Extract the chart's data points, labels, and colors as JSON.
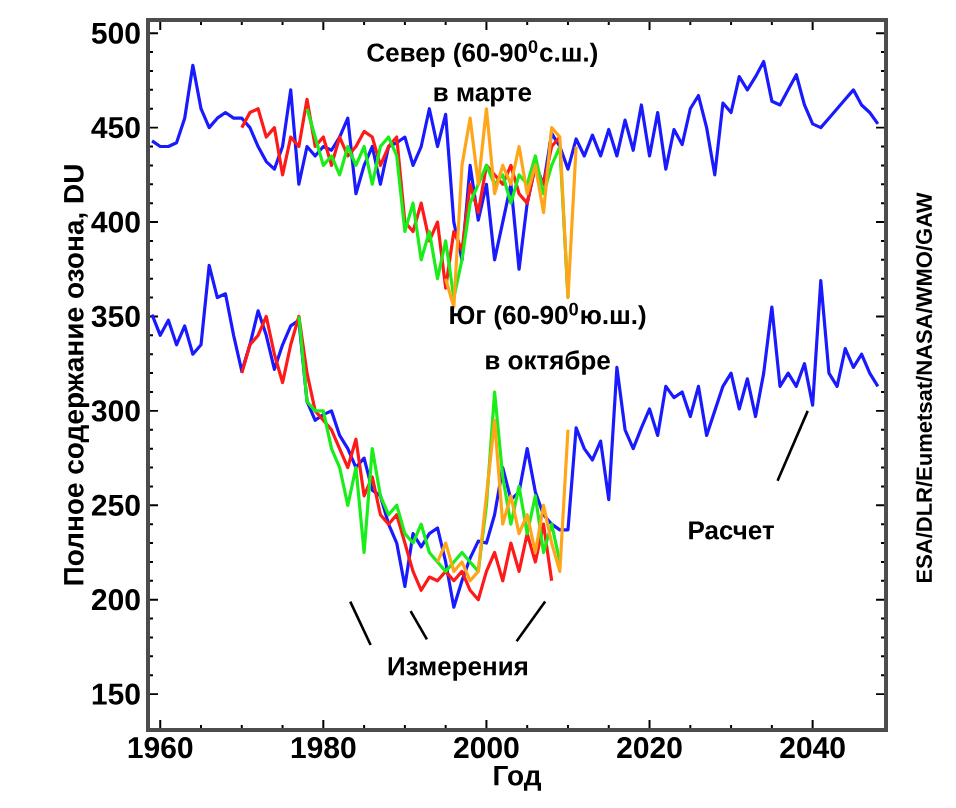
{
  "chart_data": {
    "type": "line",
    "xlabel": "Год",
    "ylabel": "Полное содержание озона, DU",
    "xlim": [
      1958.5,
      2049
    ],
    "ylim": [
      131,
      507
    ],
    "xticks": [
      1960,
      1980,
      2000,
      2020,
      2040
    ],
    "yticks": [
      150,
      200,
      250,
      300,
      350,
      400,
      450,
      500
    ],
    "grid": false,
    "marker": "none",
    "line_style": "solid",
    "annotations": [
      "Север (60-90$^{0}$с.ш.)",
      "в марте",
      "Юг (60-90$^{0}$ю.ш.)",
      "в октябре",
      "Измерения",
      "Расчет",
      "ESA/DLR/Eumetsat/NASA/WMO/GAW"
    ],
    "series": [
      {
        "color": "#1a1aff",
        "x": [
          1959,
          1960,
          1961,
          1962,
          1963,
          1964,
          1965,
          1966,
          1967,
          1968,
          1969,
          1970,
          1971,
          1972,
          1973,
          1974,
          1975,
          1976,
          1977,
          1978,
          1979,
          1980,
          1981,
          1982,
          1983,
          1984,
          1985,
          1986,
          1987,
          1988,
          1989,
          1990,
          1991,
          1992,
          1993,
          1994,
          1995,
          1996,
          1997,
          1998,
          1999,
          2000,
          2001,
          2002,
          2003,
          2004,
          2005,
          2006,
          2007,
          2008,
          2009,
          2010,
          2011,
          2012,
          2013,
          2014,
          2015,
          2016,
          2017,
          2018,
          2019,
          2020,
          2021,
          2022,
          2023,
          2024,
          2025,
          2026,
          2027,
          2028,
          2029,
          2030,
          2031,
          2032,
          2033,
          2034,
          2035,
          2036,
          2037,
          2038,
          2039,
          2040,
          2041,
          2042,
          2043,
          2044,
          2045,
          2046,
          2047,
          2048
        ],
        "values": [
          443,
          440,
          440,
          442,
          455,
          483,
          460,
          450,
          455,
          458,
          455,
          455,
          450,
          440,
          432,
          428,
          440,
          470,
          420,
          440,
          435,
          440,
          438,
          445,
          455,
          415,
          430,
          440,
          420,
          440,
          442,
          445,
          430,
          440,
          460,
          440,
          457,
          400,
          380,
          430,
          401,
          420,
          380,
          400,
          420,
          375,
          410,
          430,
          420,
          447,
          440,
          428,
          444,
          435,
          446,
          435,
          449,
          435,
          454,
          438,
          462,
          435,
          458,
          428,
          449,
          441,
          460,
          467,
          450,
          425,
          463,
          458,
          477,
          470,
          477,
          485,
          464,
          462,
          470,
          478,
          462,
          452,
          450,
          455,
          460,
          465,
          470,
          462,
          458,
          452
        ]
      },
      {
        "color": "#1a1aff",
        "x": [
          1959,
          1960,
          1961,
          1962,
          1963,
          1964,
          1965,
          1966,
          1967,
          1968,
          1969,
          1970,
          1971,
          1972,
          1973,
          1974,
          1975,
          1976,
          1977,
          1978,
          1979,
          1980,
          1981,
          1982,
          1983,
          1984,
          1985,
          1986,
          1987,
          1988,
          1989,
          1990,
          1991,
          1992,
          1993,
          1994,
          1995,
          1996,
          1997,
          1998,
          1999,
          2000,
          2001,
          2002,
          2003,
          2004,
          2005,
          2006,
          2007,
          2008,
          2009,
          2010,
          2011,
          2012,
          2013,
          2014,
          2015,
          2016,
          2017,
          2018,
          2019,
          2020,
          2021,
          2022,
          2023,
          2024,
          2025,
          2026,
          2027,
          2028,
          2029,
          2030,
          2031,
          2032,
          2033,
          2034,
          2035,
          2036,
          2037,
          2038,
          2039,
          2040,
          2041,
          2042,
          2043,
          2044,
          2045,
          2046,
          2047,
          2048
        ],
        "values": [
          351,
          340,
          348,
          335,
          345,
          330,
          335,
          377,
          360,
          362,
          340,
          321,
          335,
          353,
          340,
          322,
          335,
          345,
          348,
          305,
          295,
          298,
          300,
          287,
          280,
          270,
          275,
          258,
          255,
          240,
          230,
          207,
          235,
          228,
          235,
          238,
          220,
          196,
          210,
          222,
          231,
          230,
          245,
          270,
          253,
          257,
          280,
          257,
          245,
          240,
          237,
          237,
          291,
          280,
          274,
          284,
          253,
          323,
          290,
          280,
          291,
          301,
          287,
          313,
          307,
          310,
          297,
          313,
          287,
          300,
          313,
          320,
          301,
          317,
          297,
          320,
          355,
          313,
          320,
          313,
          325,
          303,
          369,
          320,
          313,
          333,
          323,
          330,
          320,
          313
        ]
      },
      {
        "color": "#ff1a1a",
        "x": [
          1970,
          1971,
          1972,
          1973,
          1974,
          1975,
          1976,
          1977,
          1978,
          1979,
          1980,
          1981,
          1982,
          1983,
          1984,
          1985,
          1986,
          1987,
          1988,
          1989,
          1990,
          1991,
          1992,
          1993,
          1994,
          1995,
          1996,
          1997,
          1998,
          1999,
          2000,
          2001,
          2002,
          2003,
          2004,
          2005,
          2006,
          2007,
          2008,
          2009
        ],
        "values": [
          450,
          458,
          460,
          445,
          450,
          425,
          445,
          440,
          465,
          440,
          445,
          430,
          445,
          435,
          440,
          448,
          445,
          430,
          440,
          445,
          400,
          395,
          410,
          390,
          400,
          365,
          395,
          385,
          420,
          405,
          430,
          425,
          420,
          430,
          415,
          410,
          430,
          420,
          440,
          445
        ]
      },
      {
        "color": "#ff1a1a",
        "x": [
          1970,
          1971,
          1972,
          1973,
          1974,
          1975,
          1976,
          1977,
          1978,
          1979,
          1980,
          1981,
          1982,
          1983,
          1984,
          1985,
          1986,
          1987,
          1988,
          1989,
          1990,
          1991,
          1992,
          1993,
          1994,
          1995,
          1996,
          1997,
          1998,
          1999,
          2000,
          2001,
          2002,
          2003,
          2004,
          2005,
          2006,
          2007,
          2008
        ],
        "values": [
          320,
          335,
          340,
          350,
          330,
          315,
          335,
          350,
          320,
          300,
          295,
          290,
          280,
          270,
          285,
          255,
          265,
          245,
          240,
          245,
          230,
          215,
          205,
          212,
          210,
          215,
          210,
          215,
          205,
          200,
          215,
          225,
          210,
          230,
          215,
          235,
          220,
          240,
          210
        ]
      },
      {
        "color": "#1aee1a",
        "x": [
          1978,
          1979,
          1980,
          1981,
          1982,
          1983,
          1984,
          1985,
          1986,
          1987,
          1988,
          1989,
          1990,
          1991,
          1992,
          1993,
          1994,
          1995,
          1996,
          1997,
          1998,
          1999,
          2000,
          2001,
          2002,
          2003,
          2004,
          2005,
          2006,
          2007,
          2008,
          2009,
          2010
        ],
        "values": [
          460,
          445,
          430,
          435,
          425,
          440,
          430,
          440,
          420,
          440,
          445,
          435,
          395,
          410,
          380,
          395,
          370,
          390,
          360,
          380,
          410,
          420,
          430,
          420,
          425,
          410,
          425,
          420,
          435,
          415,
          430,
          440,
          360
        ]
      },
      {
        "color": "#1aee1a",
        "x": [
          1977,
          1978,
          1979,
          1980,
          1981,
          1982,
          1983,
          1984,
          1985,
          1986,
          1987,
          1988,
          1989,
          1990,
          1991,
          1992,
          1993,
          1994,
          1995,
          1996,
          1997,
          1998,
          1999,
          2000,
          2001,
          2002,
          2003,
          2004,
          2005,
          2006,
          2007,
          2008,
          2009
        ],
        "values": [
          350,
          305,
          300,
          300,
          280,
          270,
          250,
          270,
          225,
          280,
          255,
          245,
          250,
          235,
          230,
          240,
          225,
          220,
          215,
          220,
          225,
          220,
          215,
          250,
          310,
          265,
          240,
          260,
          235,
          255,
          225,
          240,
          220
        ]
      },
      {
        "color": "#ffa51a",
        "x": [
          1995,
          1996,
          1997,
          1998,
          1999,
          2000,
          2001,
          2002,
          2003,
          2004,
          2005,
          2006,
          2007,
          2008,
          2009,
          2010,
          2011
        ],
        "values": [
          370,
          355,
          430,
          455,
          420,
          460,
          415,
          430,
          420,
          440,
          415,
          430,
          405,
          450,
          445,
          360,
          440
        ]
      },
      {
        "color": "#ffa51a",
        "x": [
          1994,
          1995,
          1996,
          1997,
          1998,
          1999,
          2000,
          2001,
          2002,
          2003,
          2004,
          2005,
          2006,
          2007,
          2008,
          2009,
          2010
        ],
        "values": [
          220,
          230,
          215,
          220,
          210,
          215,
          255,
          295,
          240,
          255,
          235,
          245,
          225,
          250,
          230,
          215,
          290
        ]
      }
    ]
  }
}
